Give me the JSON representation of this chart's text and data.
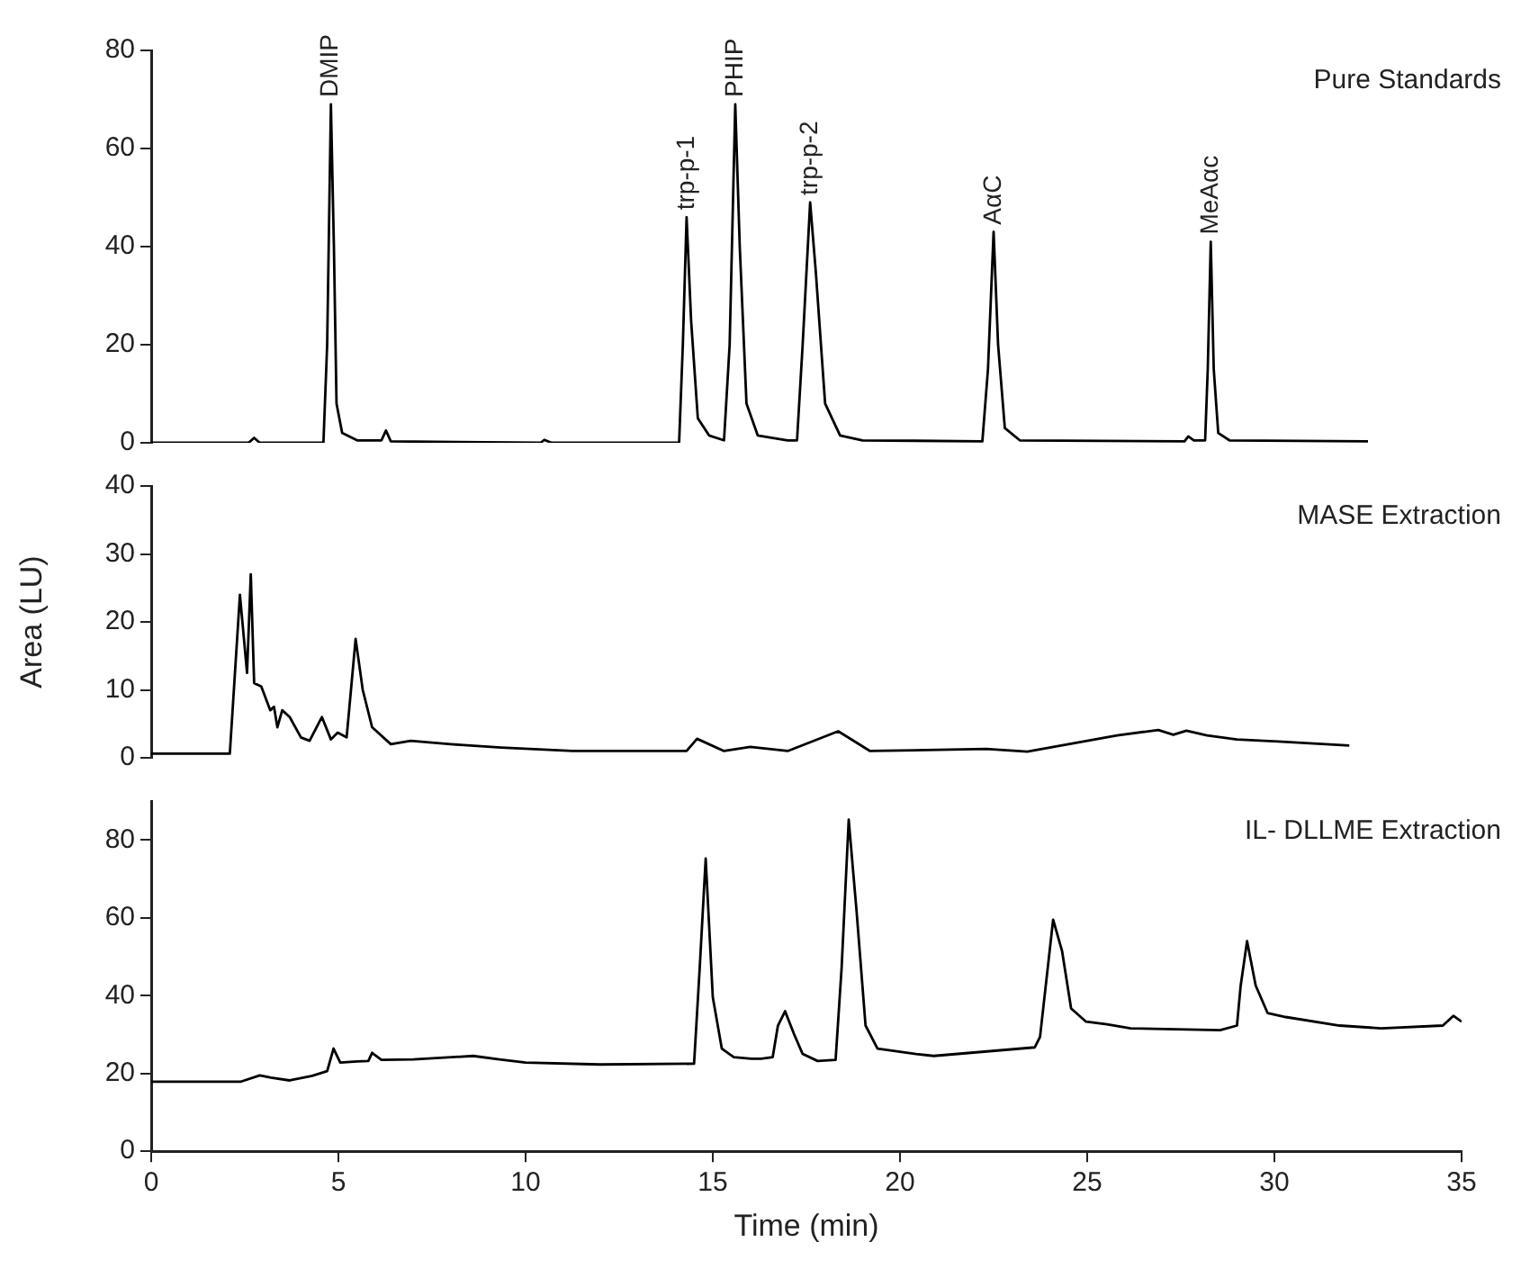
{
  "chart_data": [
    {
      "type": "line",
      "x": [
        0,
        2.6,
        2.75,
        2.9,
        4.6,
        4.7,
        4.8,
        4.88,
        4.95,
        5.1,
        5.5,
        6.15,
        6.27,
        6.4,
        10.4,
        10.5,
        10.7,
        14.1,
        14.2,
        14.3,
        14.42,
        14.6,
        14.9,
        15.3,
        15.45,
        15.6,
        15.72,
        15.9,
        16.2,
        17.0,
        17.25,
        17.4,
        17.6,
        17.75,
        18.0,
        18.4,
        19,
        22.2,
        22.35,
        22.5,
        22.62,
        22.8,
        23.2,
        27.6,
        27.7,
        27.85,
        28.15,
        28.22,
        28.3,
        28.38,
        28.5,
        28.8,
        32.5
      ],
      "series": [
        {
          "color": "#000000",
          "values": [
            0,
            0,
            1,
            0,
            0,
            20,
            69,
            40,
            8,
            2,
            0.5,
            0.5,
            2.5,
            0.3,
            0,
            0.6,
            0,
            0,
            20,
            46,
            25,
            5,
            1.5,
            0.5,
            20,
            69,
            40,
            8,
            1.5,
            0.5,
            0.5,
            20,
            49,
            35,
            8,
            1.5,
            0.5,
            0.3,
            15,
            43,
            20,
            3,
            0.5,
            0.3,
            1.3,
            0.5,
            0.5,
            15,
            41,
            15,
            2,
            0.5,
            0.3
          ]
        }
      ],
      "xlim": [
        0,
        35
      ],
      "ylim": [
        0,
        80
      ],
      "yticks": [
        0,
        20,
        40,
        60,
        80
      ],
      "tick_labels": "y",
      "annotations": [
        "Pure Standards",
        {
          "text": "DMIP",
          "x": 4.8,
          "y": 69
        },
        {
          "text": "trp-p-1",
          "x": 14.3,
          "y": 46
        },
        {
          "text": "PHIP",
          "x": 15.6,
          "y": 69
        },
        {
          "text": "trp-p-2",
          "x": 17.6,
          "y": 49
        },
        {
          "text": "AαC",
          "x": 22.5,
          "y": 43
        },
        {
          "text": "MeAαc",
          "x": 28.3,
          "y": 41
        }
      ]
    },
    {
      "type": "line",
      "x": [
        0,
        2.1,
        2.37,
        2.56,
        2.66,
        2.75,
        2.94,
        3.18,
        3.28,
        3.37,
        3.5,
        3.7,
        4.0,
        4.23,
        4.56,
        4.8,
        4.98,
        5.22,
        5.46,
        5.65,
        5.9,
        6.4,
        6.93,
        8.0,
        9.35,
        11.25,
        14.3,
        14.58,
        15.3,
        16.0,
        17.0,
        18.35,
        19.2,
        22.3,
        23.4,
        25.8,
        26.9,
        27.3,
        27.65,
        28.2,
        29.0,
        30.1,
        32.0
      ],
      "series": [
        {
          "color": "#000000",
          "values": [
            0.6,
            0.6,
            24,
            12.5,
            27,
            11,
            10.5,
            7,
            7.5,
            4.5,
            7,
            6,
            3,
            2.5,
            6,
            2.7,
            3.7,
            3,
            17.5,
            10,
            4.5,
            2,
            2.5,
            2,
            1.5,
            1,
            1,
            2.8,
            1,
            1.6,
            1,
            3.9,
            1,
            1.3,
            0.9,
            3.3,
            4.1,
            3.4,
            4,
            3.3,
            2.7,
            2.4,
            1.8
          ]
        }
      ],
      "xlim": [
        0,
        35
      ],
      "ylim": [
        0,
        40
      ],
      "yticks": [
        0,
        10,
        20,
        30,
        40
      ],
      "tick_labels": "y",
      "ylabel": "Area (LU)",
      "annotations": [
        "MASE Extraction"
      ]
    },
    {
      "type": "line",
      "x": [
        0,
        2.4,
        2.9,
        3.2,
        3.7,
        4.3,
        4.7,
        4.87,
        5.05,
        5.5,
        5.8,
        5.9,
        6.15,
        7,
        8.6,
        9.3,
        10,
        12,
        14.5,
        14.65,
        14.81,
        15.0,
        15.24,
        15.56,
        16.03,
        16.29,
        16.6,
        16.74,
        16.93,
        17.17,
        17.4,
        17.8,
        18.28,
        18.44,
        18.63,
        18.84,
        19.08,
        19.4,
        20.43,
        20.9,
        23.6,
        23.74,
        24.09,
        24.33,
        24.57,
        24.97,
        25.53,
        26.16,
        28.55,
        29.0,
        29.1,
        29.27,
        29.5,
        29.82,
        30.3,
        31.74,
        32.85,
        34.5,
        34.78,
        35.0
      ],
      "series": [
        {
          "color": "#000000",
          "values": [
            17.9,
            17.9,
            19.5,
            18.9,
            18.2,
            19.4,
            20.6,
            26.4,
            22.8,
            23.1,
            23.2,
            25.3,
            23.5,
            23.6,
            24.5,
            23.6,
            22.8,
            22.3,
            22.5,
            47,
            75.2,
            39.6,
            26.4,
            24.2,
            23.8,
            23.8,
            24.2,
            32.3,
            36.0,
            30.1,
            25.0,
            23.2,
            23.5,
            47,
            85.2,
            61.7,
            32.3,
            26.4,
            25.0,
            24.5,
            26.7,
            29.4,
            59.5,
            51.4,
            36.7,
            33.3,
            32.6,
            31.6,
            31.1,
            32.3,
            42.6,
            54.0,
            42.6,
            35.5,
            34.5,
            32.3,
            31.6,
            32.3,
            34.8,
            33.3
          ]
        }
      ],
      "xlim": [
        0,
        35
      ],
      "xticks": [
        0,
        5,
        10,
        15,
        20,
        25,
        30,
        35
      ],
      "ylim": [
        0,
        90
      ],
      "yticks": [
        0,
        20,
        40,
        60,
        80
      ],
      "xlabel": "Time (min)",
      "annotations": [
        "IL- DLLME Extraction"
      ]
    }
  ]
}
